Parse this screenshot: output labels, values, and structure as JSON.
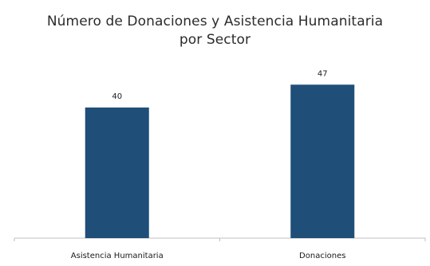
{
  "chart_data": {
    "type": "bar",
    "title_lines": [
      "Número de Donaciones y Asistencia Humanitaria",
      "por Sector"
    ],
    "categories": [
      "Asistencia Humanitaria",
      "Donaciones"
    ],
    "values": [
      40,
      47
    ],
    "data_labels": [
      "40",
      "47"
    ],
    "ylim": [
      0,
      60
    ],
    "grid": false,
    "legend": "none",
    "bar_color": "#1f4e79",
    "axis_color": "#bfbfbf"
  }
}
